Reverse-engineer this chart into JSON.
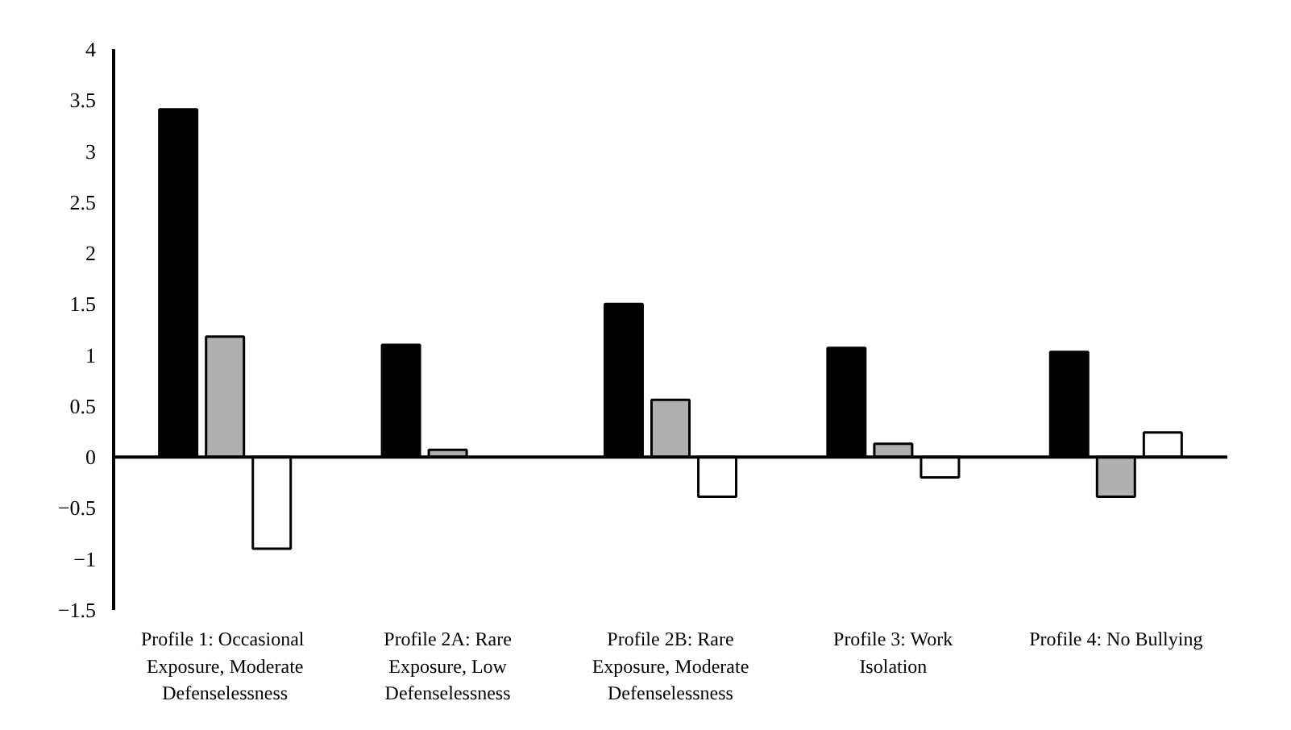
{
  "chart_data": {
    "type": "bar",
    "categories": [
      "Profile 1:  Occasional Exposure, Moderate Defenselessness",
      "Profile 2A: Rare Exposure, Low Defenselessness",
      "Profile 2B: Rare Exposure, Moderate Defenselessness",
      "Profile 3: Work Isolation",
      "Profile 4: No Bullying"
    ],
    "series": [
      {
        "color": "#000000",
        "values": [
          3.41,
          1.1,
          1.5,
          1.07,
          1.03
        ]
      },
      {
        "color": "#b0b0b0",
        "values": [
          1.18,
          0.07,
          0.56,
          0.13,
          -0.39
        ]
      },
      {
        "color": "#ffffff",
        "values": [
          -0.9,
          null,
          -0.39,
          -0.2,
          0.24
        ]
      }
    ],
    "ylim": [
      -1.5,
      4
    ],
    "yticks": [
      -1.5,
      -1,
      -0.5,
      0,
      0.5,
      1,
      1.5,
      2,
      2.5,
      3,
      3.5,
      4
    ],
    "legend": false
  }
}
